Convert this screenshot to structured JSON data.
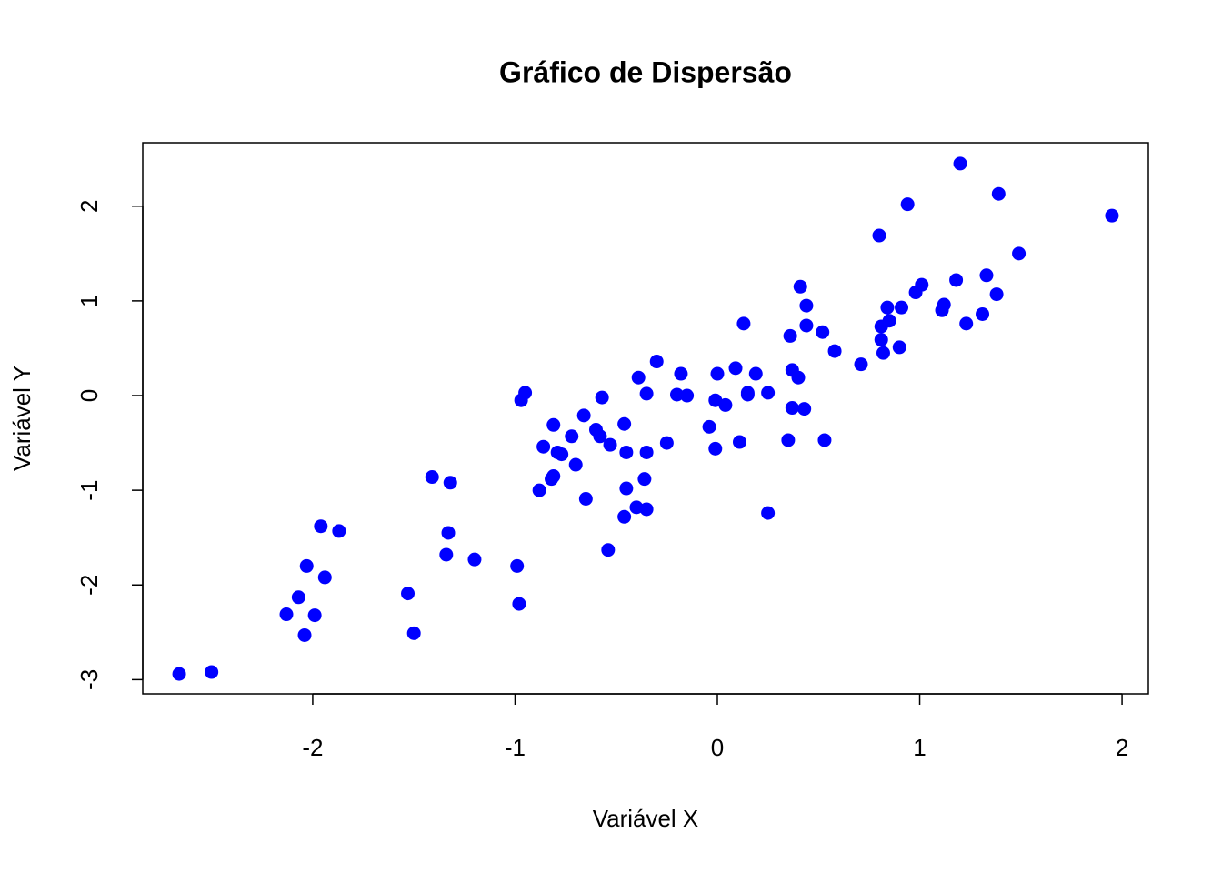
{
  "chart_data": {
    "type": "scatter",
    "title": "Gráfico de Dispersão",
    "x_label": "Variável X",
    "y_label": "Variável Y",
    "color": "#0000ff",
    "grid": false,
    "xlim": [
      -2.84,
      2.13
    ],
    "ylim": [
      -3.15,
      2.67
    ],
    "xticks": [
      -2,
      -1,
      0,
      1,
      2
    ],
    "yticks": [
      -3,
      -2,
      -1,
      0,
      1,
      2
    ],
    "x": [
      -2.66,
      -2.5,
      -2.13,
      -2.07,
      -2.04,
      -2.03,
      -1.99,
      -1.96,
      -1.94,
      -1.87,
      -1.53,
      -1.5,
      -1.41,
      -1.34,
      -1.33,
      -1.32,
      -1.2,
      -0.99,
      -0.98,
      -0.97,
      -0.95,
      -0.88,
      -0.86,
      -0.82,
      -0.81,
      -0.81,
      -0.79,
      -0.77,
      -0.72,
      -0.7,
      -0.66,
      -0.65,
      -0.6,
      -0.58,
      -0.57,
      -0.54,
      -0.53,
      -0.46,
      -0.46,
      -0.45,
      -0.45,
      -0.4,
      -0.39,
      -0.36,
      -0.35,
      -0.35,
      -0.35,
      -0.3,
      -0.25,
      -0.2,
      -0.18,
      -0.15,
      -0.04,
      -0.01,
      -0.01,
      0.0,
      0.04,
      0.09,
      0.11,
      0.13,
      0.15,
      0.15,
      0.19,
      0.25,
      0.25,
      0.35,
      0.36,
      0.37,
      0.37,
      0.4,
      0.41,
      0.43,
      0.44,
      0.44,
      0.52,
      0.53,
      0.58,
      0.71,
      0.8,
      0.81,
      0.81,
      0.82,
      0.84,
      0.85,
      0.9,
      0.91,
      0.94,
      0.98,
      1.01,
      1.11,
      1.12,
      1.18,
      1.2,
      1.23,
      1.31,
      1.33,
      1.38,
      1.39,
      1.49,
      1.95
    ],
    "values": [
      -2.94,
      -2.92,
      -2.31,
      -2.13,
      -2.53,
      -1.8,
      -2.32,
      -1.38,
      -1.92,
      -1.43,
      -2.09,
      -2.51,
      -0.86,
      -1.68,
      -1.45,
      -0.92,
      -1.73,
      -1.8,
      -2.2,
      -0.05,
      0.03,
      -1.0,
      -0.54,
      -0.88,
      -0.85,
      -0.31,
      -0.6,
      -0.62,
      -0.43,
      -0.73,
      -0.21,
      -1.09,
      -0.36,
      -0.43,
      -0.02,
      -1.63,
      -0.52,
      -0.3,
      -1.28,
      -0.98,
      -0.6,
      -1.18,
      0.19,
      -0.88,
      -1.2,
      -0.6,
      0.02,
      0.36,
      -0.5,
      0.01,
      0.23,
      0.0,
      -0.33,
      -0.56,
      -0.05,
      0.23,
      -0.1,
      0.29,
      -0.49,
      0.76,
      0.01,
      0.03,
      0.23,
      0.03,
      -1.24,
      -0.47,
      0.63,
      0.27,
      -0.13,
      0.19,
      1.15,
      -0.14,
      0.74,
      0.95,
      0.67,
      -0.47,
      0.47,
      0.33,
      1.69,
      0.73,
      0.59,
      0.45,
      0.93,
      0.79,
      0.51,
      0.93,
      2.02,
      1.09,
      1.17,
      0.9,
      0.96,
      1.22,
      2.45,
      0.76,
      0.86,
      1.27,
      1.07,
      2.13,
      1.5,
      1.9
    ]
  }
}
